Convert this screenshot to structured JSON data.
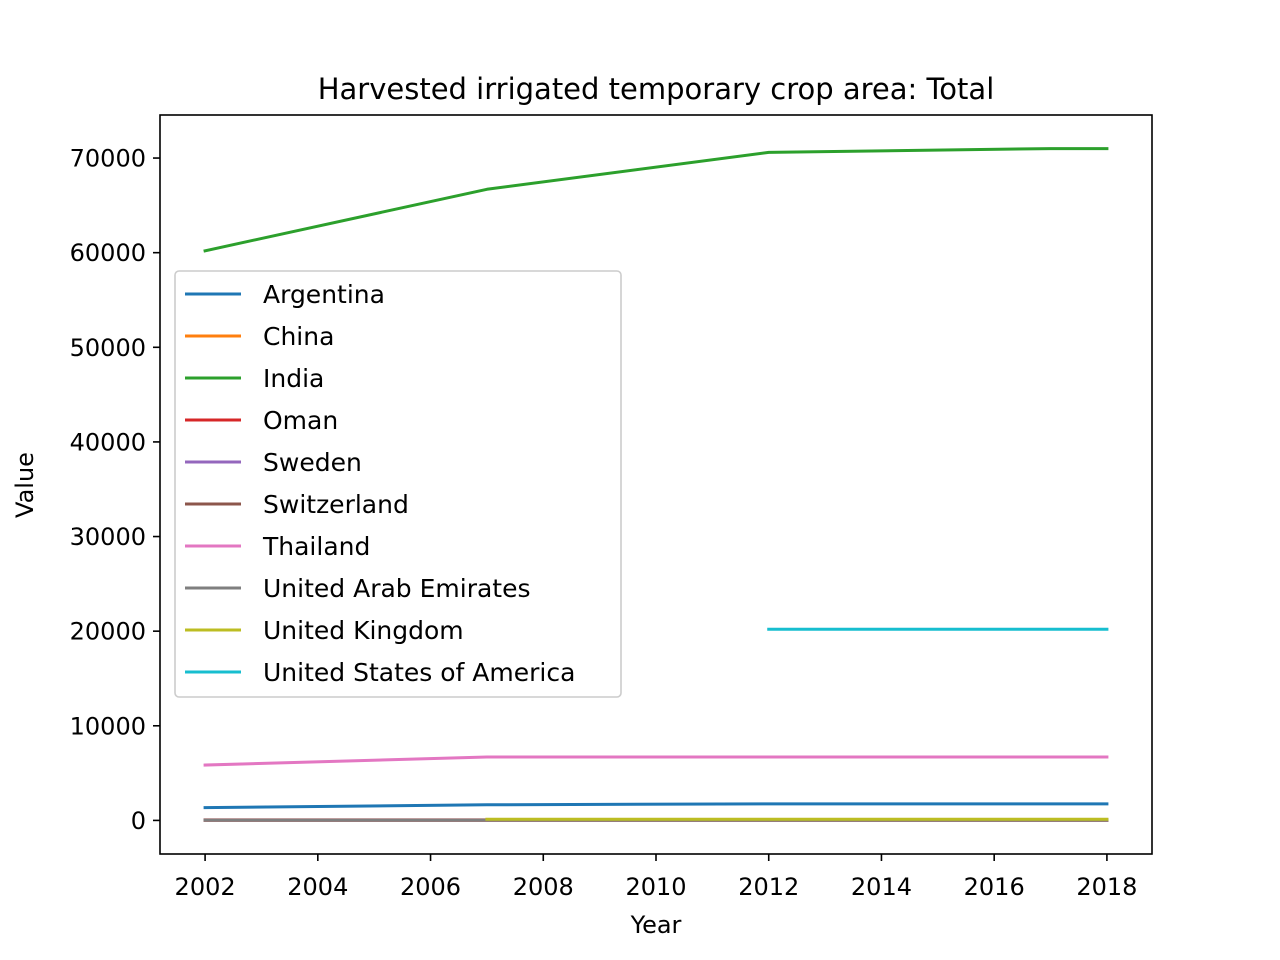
{
  "chart_data": {
    "type": "line",
    "title": "Harvested irrigated temporary crop area: Total",
    "xlabel": "Year",
    "ylabel": "Value",
    "xlim": [
      2001.2,
      2018.8
    ],
    "ylim": [
      -3550,
      74550
    ],
    "xticks": [
      2002,
      2004,
      2006,
      2008,
      2010,
      2012,
      2014,
      2016,
      2018
    ],
    "yticks": [
      0,
      10000,
      20000,
      30000,
      40000,
      50000,
      60000,
      70000
    ],
    "grid": false,
    "legend_position": "center-left",
    "series": [
      {
        "name": "Argentina",
        "color": "#1f77b4",
        "points": [
          [
            2002,
            1350
          ],
          [
            2007,
            1650
          ],
          [
            2012,
            1750
          ],
          [
            2017,
            1750
          ],
          [
            2018,
            1750
          ]
        ]
      },
      {
        "name": "China",
        "color": "#ff7f0e",
        "points": [
          [
            2002,
            0
          ],
          [
            2007,
            0
          ],
          [
            2012,
            0
          ],
          [
            2017,
            0
          ],
          [
            2018,
            0
          ]
        ]
      },
      {
        "name": "India",
        "color": "#2ca02c",
        "points": [
          [
            2002,
            60200
          ],
          [
            2007,
            66700
          ],
          [
            2012,
            70600
          ],
          [
            2017,
            71000
          ],
          [
            2018,
            71000
          ]
        ]
      },
      {
        "name": "Oman",
        "color": "#d62728",
        "points": [
          [
            2002,
            60
          ],
          [
            2007,
            60
          ],
          [
            2012,
            60
          ],
          [
            2017,
            60
          ],
          [
            2018,
            60
          ]
        ]
      },
      {
        "name": "Sweden",
        "color": "#9467bd",
        "points": [
          [
            2002,
            20
          ],
          [
            2007,
            20
          ],
          [
            2012,
            20
          ],
          [
            2017,
            20
          ],
          [
            2018,
            20
          ]
        ]
      },
      {
        "name": "Switzerland",
        "color": "#8c564b",
        "points": [
          [
            2002,
            25
          ],
          [
            2007,
            25
          ],
          [
            2012,
            25
          ],
          [
            2017,
            25
          ],
          [
            2018,
            25
          ]
        ]
      },
      {
        "name": "Thailand",
        "color": "#e377c2",
        "points": [
          [
            2002,
            5850
          ],
          [
            2007,
            6700
          ],
          [
            2012,
            6700
          ],
          [
            2017,
            6700
          ],
          [
            2018,
            6700
          ]
        ]
      },
      {
        "name": "United Arab Emirates",
        "color": "#7f7f7f",
        "points": [
          [
            2002,
            30
          ],
          [
            2007,
            30
          ],
          [
            2012,
            30
          ],
          [
            2017,
            30
          ],
          [
            2018,
            30
          ]
        ]
      },
      {
        "name": "United Kingdom",
        "color": "#bcbd22",
        "points": [
          [
            2007,
            120
          ],
          [
            2012,
            120
          ],
          [
            2017,
            120
          ],
          [
            2018,
            120
          ]
        ]
      },
      {
        "name": "United States of America",
        "color": "#17becf",
        "points": [
          [
            2012,
            20200
          ],
          [
            2017,
            20200
          ],
          [
            2018,
            20200
          ]
        ]
      }
    ]
  }
}
